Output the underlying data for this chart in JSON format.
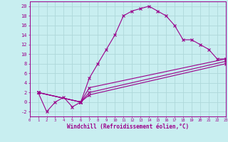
{
  "xlabel": "Windchill (Refroidissement éolien,°C)",
  "bg_color": "#c8eef0",
  "line_color": "#9b008b",
  "grid_color": "#aed8da",
  "series": [
    {
      "x": [
        1,
        2,
        3,
        4,
        5,
        6,
        7,
        8,
        9,
        10,
        11,
        12,
        13,
        14,
        15,
        16,
        17,
        18,
        19,
        20,
        21,
        22,
        23
      ],
      "y": [
        2,
        -2,
        0,
        1,
        -1,
        0,
        5,
        8,
        11,
        14,
        18,
        19,
        19.5,
        20,
        19,
        18,
        16,
        13,
        13,
        12,
        11,
        9,
        9
      ]
    },
    {
      "x": [
        1,
        6,
        7,
        23
      ],
      "y": [
        2,
        0,
        3,
        9
      ]
    },
    {
      "x": [
        1,
        6,
        7,
        23
      ],
      "y": [
        2,
        0,
        2,
        8.5
      ]
    },
    {
      "x": [
        1,
        6,
        7,
        23
      ],
      "y": [
        2,
        0,
        1.5,
        8
      ]
    }
  ],
  "xlim": [
    0,
    23
  ],
  "ylim": [
    -3,
    21
  ],
  "xticks": [
    0,
    1,
    2,
    3,
    4,
    5,
    6,
    7,
    8,
    9,
    10,
    11,
    12,
    13,
    14,
    15,
    16,
    17,
    18,
    19,
    20,
    21,
    22,
    23
  ],
  "yticks": [
    -2,
    0,
    2,
    4,
    6,
    8,
    10,
    12,
    14,
    16,
    18,
    20
  ],
  "marker": "x",
  "xtick_fontsize": 4.0,
  "ytick_fontsize": 5.0,
  "xlabel_fontsize": 5.5
}
